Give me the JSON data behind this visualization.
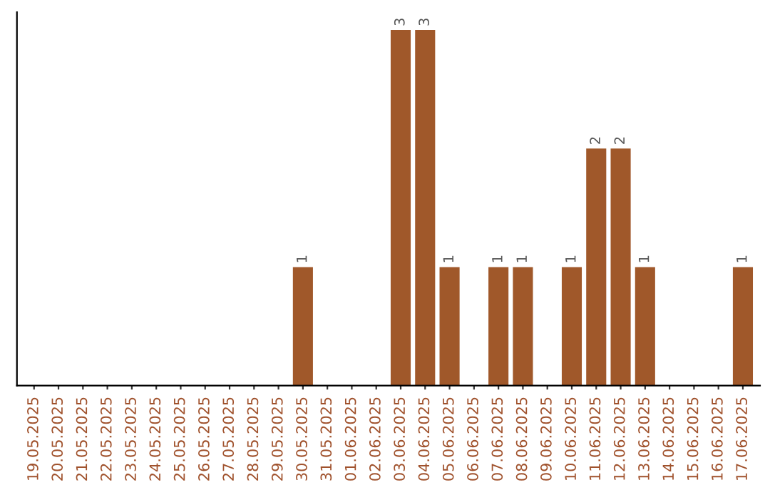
{
  "chart_data": {
    "type": "bar",
    "categories": [
      "19.05.2025",
      "20.05.2025",
      "21.05.2025",
      "22.05.2025",
      "23.05.2025",
      "24.05.2025",
      "25.05.2025",
      "26.05.2025",
      "27.05.2025",
      "28.05.2025",
      "29.05.2025",
      "30.05.2025",
      "31.05.2025",
      "01.06.2025",
      "02.06.2025",
      "03.06.2025",
      "04.06.2025",
      "05.06.2025",
      "06.06.2025",
      "07.06.2025",
      "08.06.2025",
      "09.06.2025",
      "10.06.2025",
      "11.06.2025",
      "12.06.2025",
      "13.06.2025",
      "14.06.2025",
      "15.06.2025",
      "16.06.2025",
      "17.06.2025"
    ],
    "values": [
      0,
      0,
      0,
      0,
      0,
      0,
      0,
      0,
      0,
      0,
      0,
      1,
      0,
      0,
      0,
      3,
      3,
      1,
      0,
      1,
      1,
      0,
      1,
      2,
      2,
      1,
      0,
      0,
      0,
      1
    ],
    "color": "#a0582a",
    "ylim": [
      0,
      3.15
    ],
    "tick_labels": "x",
    "value_labels": [
      null,
      null,
      null,
      null,
      null,
      null,
      null,
      null,
      null,
      null,
      null,
      "1",
      null,
      null,
      null,
      "3",
      "3",
      "1",
      null,
      "1",
      "1",
      null,
      "1",
      "2",
      "2",
      "1",
      null,
      null,
      null,
      "1"
    ],
    "grid": false
  }
}
